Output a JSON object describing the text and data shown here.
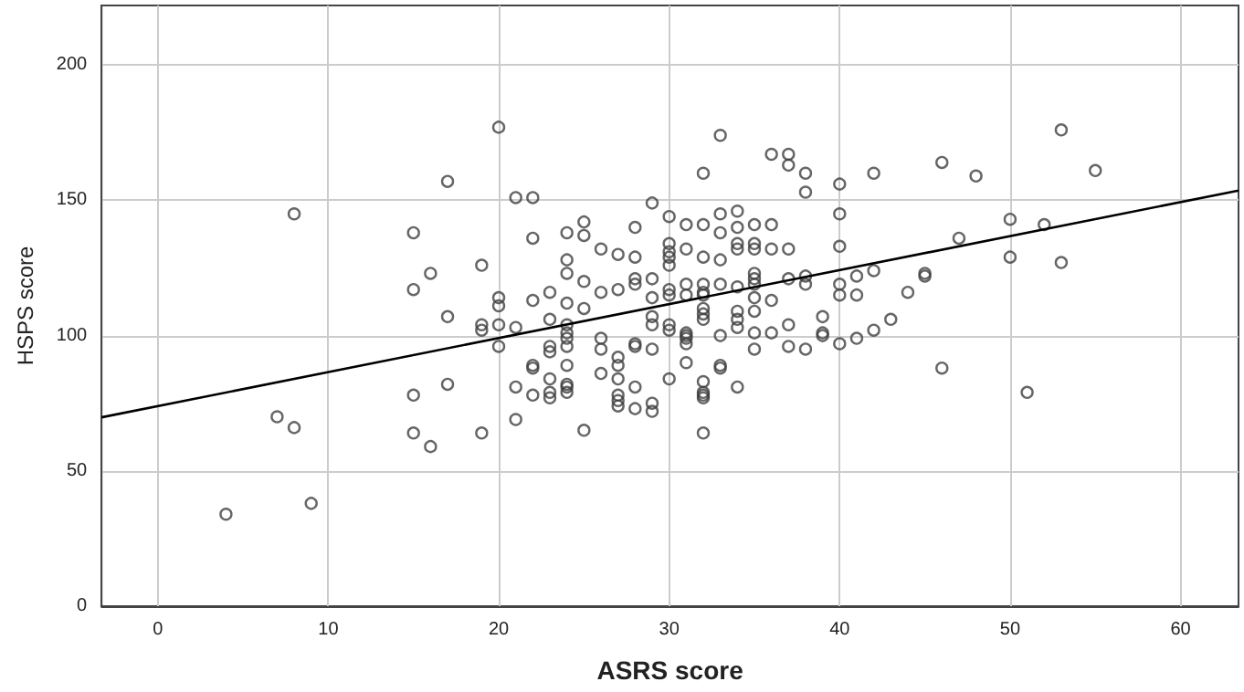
{
  "chart_data": {
    "type": "scatter",
    "xlabel": "ASRS score",
    "ylabel": "HSPS score",
    "xlim": [
      -3.3,
      63.4
    ],
    "ylim": [
      0,
      222
    ],
    "xticks": [
      0,
      10,
      20,
      30,
      40,
      50,
      60
    ],
    "yticks": [
      0,
      50,
      100,
      150,
      200
    ],
    "grid": true,
    "marker": "circle",
    "series": [
      {
        "color": "#404040",
        "x": [
          8,
          17,
          15,
          16,
          15,
          17,
          4,
          7,
          8,
          9,
          15,
          15,
          16,
          17,
          20,
          21,
          22,
          22,
          19,
          24,
          25,
          25,
          24,
          24,
          26,
          27,
          28,
          28,
          29,
          30,
          30,
          30,
          30,
          30,
          31,
          31,
          32,
          33,
          32,
          32,
          33,
          33,
          33,
          34,
          34,
          34,
          34,
          35,
          35,
          35,
          36,
          37,
          37,
          36,
          36,
          37,
          38,
          38,
          40,
          40,
          40,
          40,
          40,
          20,
          20,
          19,
          19,
          20,
          21,
          22,
          23,
          23,
          24,
          24,
          25,
          25,
          26,
          27,
          28,
          28,
          29,
          29,
          29,
          29,
          30,
          30,
          30,
          31,
          31,
          31,
          32,
          32,
          32,
          32,
          32,
          32,
          33,
          34,
          34,
          34,
          35,
          35,
          35,
          35,
          35,
          35,
          36,
          36,
          37,
          37,
          38,
          38,
          39,
          42,
          46,
          48,
          53,
          55,
          50,
          52,
          47,
          50,
          53,
          41,
          41,
          42,
          44,
          45,
          45,
          43,
          42,
          41,
          40,
          46,
          51,
          20,
          19,
          21,
          21,
          22,
          22,
          22,
          23,
          23,
          23,
          23,
          23,
          24,
          24,
          24,
          24,
          24,
          24,
          24,
          25,
          26,
          26,
          26,
          27,
          27,
          27,
          27,
          27,
          27,
          28,
          28,
          28,
          28,
          29,
          29,
          29,
          30,
          30,
          31,
          31,
          31,
          31,
          32,
          32,
          32,
          32,
          32,
          33,
          33,
          33,
          34,
          34,
          35,
          37,
          38,
          39,
          39
        ],
        "values": [
          145,
          157,
          138,
          123,
          117,
          107,
          34,
          70,
          66,
          38,
          78,
          64,
          59,
          82,
          177,
          151,
          151,
          136,
          126,
          138,
          142,
          137,
          128,
          123,
          132,
          130,
          129,
          140,
          149,
          144,
          134,
          131,
          129,
          126,
          141,
          132,
          160,
          174,
          141,
          129,
          145,
          138,
          128,
          146,
          140,
          134,
          132,
          141,
          134,
          132,
          167,
          167,
          163,
          141,
          132,
          132,
          160,
          153,
          156,
          145,
          133,
          119,
          115,
          114,
          111,
          104,
          102,
          104,
          103,
          113,
          116,
          106,
          112,
          104,
          110,
          120,
          116,
          117,
          121,
          119,
          121,
          114,
          107,
          104,
          117,
          115,
          104,
          119,
          115,
          100,
          119,
          116,
          115,
          110,
          108,
          106,
          119,
          118,
          109,
          106,
          123,
          121,
          119,
          114,
          109,
          101,
          113,
          101,
          121,
          104,
          122,
          119,
          107,
          160,
          164,
          159,
          176,
          161,
          143,
          141,
          136,
          129,
          127,
          122,
          115,
          124,
          116,
          123,
          122,
          106,
          102,
          99,
          97,
          88,
          79,
          96,
          64,
          81,
          69,
          89,
          88,
          78,
          96,
          94,
          84,
          79,
          77,
          101,
          99,
          96,
          89,
          82,
          81,
          79,
          65,
          99,
          95,
          86,
          92,
          89,
          84,
          78,
          76,
          74,
          97,
          96,
          81,
          73,
          95,
          75,
          72,
          102,
          84,
          101,
          99,
          97,
          90,
          83,
          79,
          78,
          77,
          64,
          100,
          89,
          88,
          103,
          81,
          95,
          96,
          95,
          101,
          100
        ]
      },
      {
        "type": "line",
        "marker": "none",
        "color": "#000000",
        "x": [
          -3.3,
          63.4
        ],
        "values": [
          69.8,
          153.6
        ]
      }
    ]
  }
}
